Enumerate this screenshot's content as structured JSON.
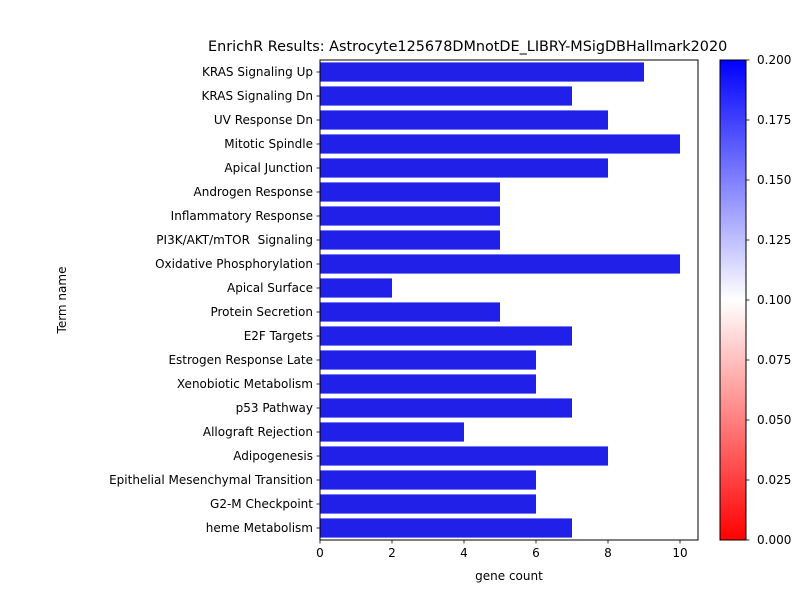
{
  "chart_data": {
    "type": "bar",
    "orientation": "horizontal",
    "title": "EnrichR Results: Astrocyte125678DMnotDE_LIBRY-MSigDBHallmark2020",
    "xlabel": "gene count",
    "ylabel": "Term name",
    "xlim": [
      0,
      10.5
    ],
    "xticks": [
      0,
      2,
      4,
      6,
      8,
      10
    ],
    "grid": false,
    "bar_color": "#2020e8",
    "categories": [
      "KRAS Signaling Up",
      "KRAS Signaling Dn",
      "UV Response Dn",
      "Mitotic Spindle",
      "Apical Junction",
      "Androgen Response",
      "Inflammatory Response",
      "PI3K/AKT/mTOR  Signaling",
      "Oxidative Phosphorylation",
      "Apical Surface",
      "Protein Secretion",
      "E2F Targets",
      "Estrogen Response Late",
      "Xenobiotic Metabolism",
      "p53 Pathway",
      "Allograft Rejection",
      "Adipogenesis",
      "Epithelial Mesenchymal Transition",
      "G2-M Checkpoint",
      "heme Metabolism"
    ],
    "values": [
      9,
      7,
      8,
      10,
      8,
      5,
      5,
      5,
      10,
      2,
      5,
      7,
      6,
      6,
      7,
      4,
      8,
      6,
      6,
      7
    ],
    "colorbar": {
      "range": [
        0.0,
        0.2
      ],
      "ticks": [
        "0.000",
        "0.025",
        "0.050",
        "0.075",
        "0.100",
        "0.125",
        "0.150",
        "0.175",
        "0.200"
      ],
      "colors": [
        "#ff0000",
        "#ffffff",
        "#0000ff"
      ]
    }
  }
}
